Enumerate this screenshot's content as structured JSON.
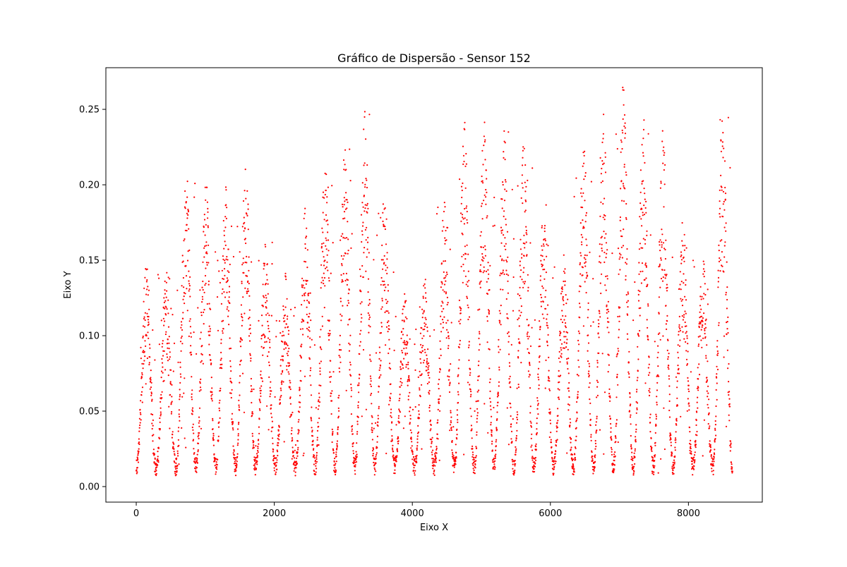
{
  "chart_data": {
    "type": "scatter",
    "title": "Gráfico de Dispersão - Sensor 152",
    "xlabel": "Eixo X",
    "ylabel": "Eixo Y",
    "xlim": [
      -440,
      9070
    ],
    "ylim": [
      -0.0103,
      0.2776
    ],
    "xticks": [
      0,
      2000,
      4000,
      6000,
      8000
    ],
    "xtick_labels": [
      "0",
      "2000",
      "4000",
      "6000",
      "8000"
    ],
    "yticks": [
      0.0,
      0.05,
      0.1,
      0.15,
      0.2,
      0.25
    ],
    "ytick_labels": [
      "0.00",
      "0.05",
      "0.10",
      "0.15",
      "0.20",
      "0.25"
    ],
    "grid": false,
    "legend": "none",
    "marker_color": "#ff0000",
    "series": [
      {
        "x_start": 0,
        "x_end": 8640,
        "point_count": 8640,
        "cycle_period": 288,
        "approx_min": 0.003,
        "approx_max": 0.267,
        "cycle_peaks": [
          0.15,
          0.142,
          0.219,
          0.205,
          0.201,
          0.226,
          0.164,
          0.142,
          0.188,
          0.221,
          0.228,
          0.254,
          0.2,
          0.131,
          0.141,
          0.191,
          0.244,
          0.243,
          0.238,
          0.229,
          0.189,
          0.155,
          0.236,
          0.252,
          0.266,
          0.248,
          0.24,
          0.179,
          0.155,
          0.251
        ]
      }
    ]
  }
}
